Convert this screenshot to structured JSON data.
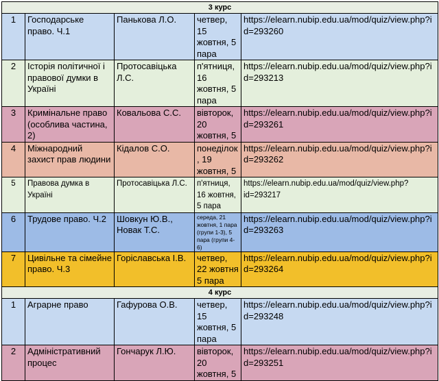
{
  "sections": [
    {
      "title": "3 курс",
      "rows": [
        {
          "n": "1",
          "course": "Господарське право. Ч.1",
          "teacher": "Панькова Л.О.",
          "time": "четвер, 15 жовтня, 5 пара",
          "link": "https://elearn.nubip.edu.ua/mod/quiz/view.php?id=293260",
          "color": "#c6d9f1"
        },
        {
          "n": "2",
          "course": "Історія політичної і правової думки в Україні",
          "teacher": "Протосавіцька Л.С.",
          "time": "п'ятниця, 16 жовтня, 5 пара",
          "link": "https://elearn.nubip.edu.ua/mod/quiz/view.php?id=293213",
          "color": "#e4efdc"
        },
        {
          "n": "3",
          "course": "Кримінальне право (особлива частина, 2)",
          "teacher": "Ковальова С.С.",
          "time": "вівторок, 20 жовтня, 5",
          "link": "https://elearn.nubip.edu.ua/mod/quiz/view.php?id=293261",
          "color": "#d9a5b8"
        },
        {
          "n": "4",
          "course": "Міжнародний захист прав людини",
          "teacher": "Кідалов С.О.",
          "time": "понеділок, 19 жовтня, 5",
          "link": "https://elearn.nubip.edu.ua/mod/quiz/view.php?id=293262",
          "color": "#e8b8a6"
        },
        {
          "n": "5",
          "course": "Правова думка в Україні",
          "teacher": "Протосавіцька Л.С.",
          "time": "п'ятниця, 16 жовтня, 5 пара",
          "link": "https://elearn.nubip.edu.ua/mod/quiz/view.php?id=293217",
          "color": "#e4efdc",
          "small": true
        },
        {
          "n": "6",
          "course": "Трудове право. Ч.2",
          "teacher": "Шовкун Ю.В., Новак Т.С.",
          "time": "середа, 21 жовтня, 1 пара (групи 1-3), 5 пара (групи 4-6)",
          "link": "https://elearn.nubip.edu.ua/mod/quiz/view.php?id=293263",
          "color": "#9dbbe6",
          "tiny": true
        },
        {
          "n": "7",
          "course": "Цивільне та сімейне право. Ч.3",
          "teacher": "Горіславська І.В.",
          "time": "четвер, 22 жовтня 5 пара",
          "link": "https://elearn.nubip.edu.ua/mod/quiz/view.php?id=293264",
          "color": "#f2bf2a"
        }
      ]
    },
    {
      "title": "4 курс",
      "rows": [
        {
          "n": "1",
          "course": "Аграрне право",
          "teacher": "Гафурова О.В.",
          "time": "четвер, 15 жовтня, 5 пара",
          "link": "https://elearn.nubip.edu.ua/mod/quiz/view.php?id=293248",
          "color": "#c6d9f1"
        },
        {
          "n": "2",
          "course": "Адміністративний процес",
          "teacher": "Гончарук Л.Ю.",
          "time": "вівторок, 20 жовтня, 5",
          "link": "https://elearn.nubip.edu.ua/mod/quiz/view.php?id=293251",
          "color": "#d9a5b8"
        }
      ]
    }
  ]
}
